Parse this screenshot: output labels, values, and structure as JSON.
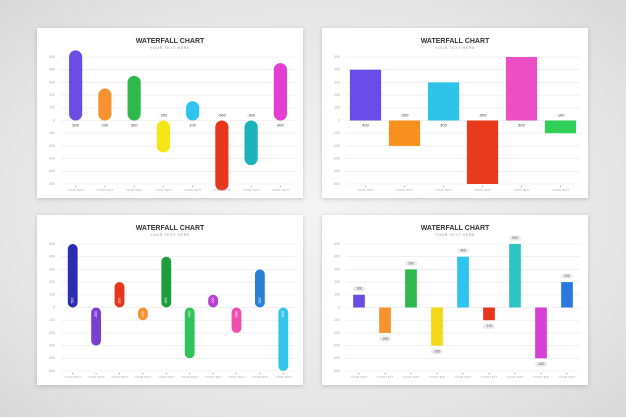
{
  "chart_data": [
    {
      "type": "bar",
      "bar_style": "rounded",
      "title": "WATERFALL CHART",
      "subtitle": "YOUR TEXT HERE",
      "categories": [
        "YOUR TEXT",
        "YOUR TEXT",
        "YOUR TEXT",
        "YOUR TEXT",
        "YOUR TEXT",
        "YOUR TEXT",
        "YOUR TEXT",
        "YOUR TEXT"
      ],
      "values": [
        500,
        200,
        300,
        -200,
        100,
        -500,
        -300,
        400
      ],
      "colors": [
        "#6b4de6",
        "#f7922f",
        "#2fb84c",
        "#f5e616",
        "#2ec4f0",
        "#e8361c",
        "#19b3b8",
        "#e43fd3"
      ],
      "ylim": [
        -500,
        500
      ],
      "yticks": [
        -500,
        -400,
        -300,
        -200,
        -100,
        0,
        100,
        200,
        300,
        400,
        500
      ],
      "grid": true
    },
    {
      "type": "bar",
      "bar_style": "block",
      "title": "WATERFALL CHART",
      "subtitle": "YOUR TEXT HERE",
      "categories": [
        "YOUR TEXT",
        "YOUR TEXT",
        "YOUR TEXT",
        "YOUR TEXT",
        "YOUR TEXT",
        "YOUR TEXT"
      ],
      "values": [
        400,
        -200,
        300,
        -500,
        500,
        -100
      ],
      "colors": [
        "#6a4de8",
        "#f7901e",
        "#2ec3e8",
        "#e83a1c",
        "#ec4fc4",
        "#2fcf58"
      ],
      "ylim": [
        -500,
        500
      ],
      "yticks": [
        -500,
        -400,
        -300,
        -200,
        -100,
        0,
        100,
        200,
        300,
        400,
        500
      ],
      "grid": true
    },
    {
      "type": "bar",
      "bar_style": "pill",
      "title": "WATERFALL CHART",
      "subtitle": "YOUR TEXT HERE",
      "categories": [
        "YOUR TEXT",
        "YOUR TEXT",
        "YOUR TEXT",
        "YOUR TEXT",
        "YOUR TEXT",
        "YOUR TEXT",
        "YOUR TEXT",
        "YOUR TEXT",
        "YOUR TEXT",
        "YOUR TEXT"
      ],
      "values": [
        500,
        -300,
        200,
        -100,
        400,
        -400,
        100,
        -200,
        300,
        -500
      ],
      "colors": [
        "#2d2bb0",
        "#7d3fd1",
        "#e8361c",
        "#f7922f",
        "#1e9e3a",
        "#2fc35a",
        "#b83fd1",
        "#ee4fb0",
        "#2a7fd9",
        "#34c6e8"
      ],
      "ylim": [
        -500,
        500
      ],
      "yticks": [
        -500,
        -400,
        -300,
        -200,
        -100,
        0,
        100,
        200,
        300,
        400,
        500
      ],
      "grid": true
    },
    {
      "type": "bar",
      "bar_style": "flat",
      "title": "WATERFALL CHART",
      "subtitle": "YOUR TEXT HERE",
      "categories": [
        "YOUR TEXT",
        "YOUR TEXT",
        "YOUR TEXT",
        "YOUR TEXT",
        "YOUR TEXT",
        "YOUR TEXT",
        "YOUR TEXT",
        "YOUR TEXT",
        "YOUR TEXT"
      ],
      "values": [
        100,
        -200,
        300,
        -300,
        400,
        -100,
        500,
        -400,
        200
      ],
      "colors": [
        "#6b4de6",
        "#f7922f",
        "#2fb84c",
        "#f5d816",
        "#2ec4f0",
        "#e8361c",
        "#2ec4c4",
        "#d840d8",
        "#2a78e0"
      ],
      "ylim": [
        -500,
        500
      ],
      "yticks": [
        -500,
        -400,
        -300,
        -200,
        -100,
        0,
        100,
        200,
        300,
        400,
        500
      ],
      "grid": true
    }
  ]
}
